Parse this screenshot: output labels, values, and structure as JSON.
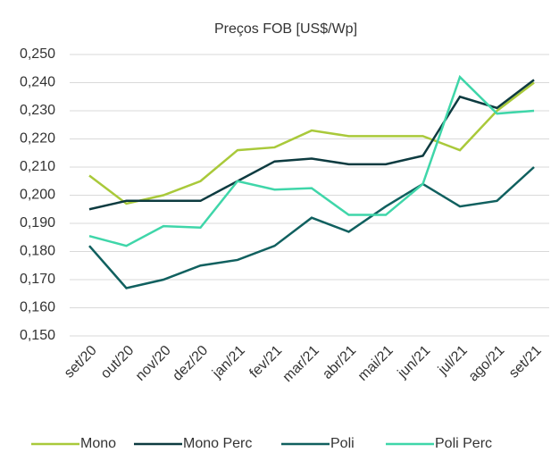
{
  "chart_data": {
    "type": "line",
    "title": "Preços FOB [US$/Wp]",
    "categories": [
      "set/20",
      "out/20",
      "nov/20",
      "dez/20",
      "jan/21",
      "fev/21",
      "mar/21",
      "abr/21",
      "mai/21",
      "jun/21",
      "jul/21",
      "ago/21",
      "set/21"
    ],
    "series": [
      {
        "name": "Mono",
        "color": "#a9c93a",
        "values": [
          0.207,
          0.197,
          0.2,
          0.205,
          0.216,
          0.217,
          0.223,
          0.221,
          0.221,
          0.221,
          0.216,
          0.23,
          0.24
        ]
      },
      {
        "name": "Mono Perc",
        "color": "#0d3b40",
        "values": [
          0.195,
          0.198,
          0.198,
          0.198,
          0.205,
          0.212,
          0.213,
          0.211,
          0.211,
          0.214,
          0.235,
          0.231,
          0.241
        ]
      },
      {
        "name": "Poli",
        "color": "#10605f",
        "values": [
          0.182,
          0.167,
          0.17,
          0.175,
          0.177,
          0.182,
          0.192,
          0.187,
          0.196,
          0.204,
          0.196,
          0.198,
          0.21
        ]
      },
      {
        "name": "Poli Perc",
        "color": "#3fd6a9",
        "values": [
          0.1855,
          0.182,
          0.189,
          0.1885,
          0.205,
          0.202,
          0.2025,
          0.193,
          0.193,
          0.204,
          0.242,
          0.229,
          0.23
        ]
      }
    ],
    "ylim": [
      0.15,
      0.25
    ],
    "yticks": [
      {
        "value": 0.15,
        "label": "0,150"
      },
      {
        "value": 0.16,
        "label": "0,160"
      },
      {
        "value": 0.17,
        "label": "0,170"
      },
      {
        "value": 0.18,
        "label": "0,180"
      },
      {
        "value": 0.19,
        "label": "0,190"
      },
      {
        "value": 0.2,
        "label": "0,200"
      },
      {
        "value": 0.21,
        "label": "0,210"
      },
      {
        "value": 0.22,
        "label": "0,220"
      },
      {
        "value": 0.23,
        "label": "0,230"
      },
      {
        "value": 0.24,
        "label": "0,240"
      },
      {
        "value": 0.25,
        "label": "0,250"
      }
    ],
    "grid": true,
    "legend": "bottom"
  }
}
